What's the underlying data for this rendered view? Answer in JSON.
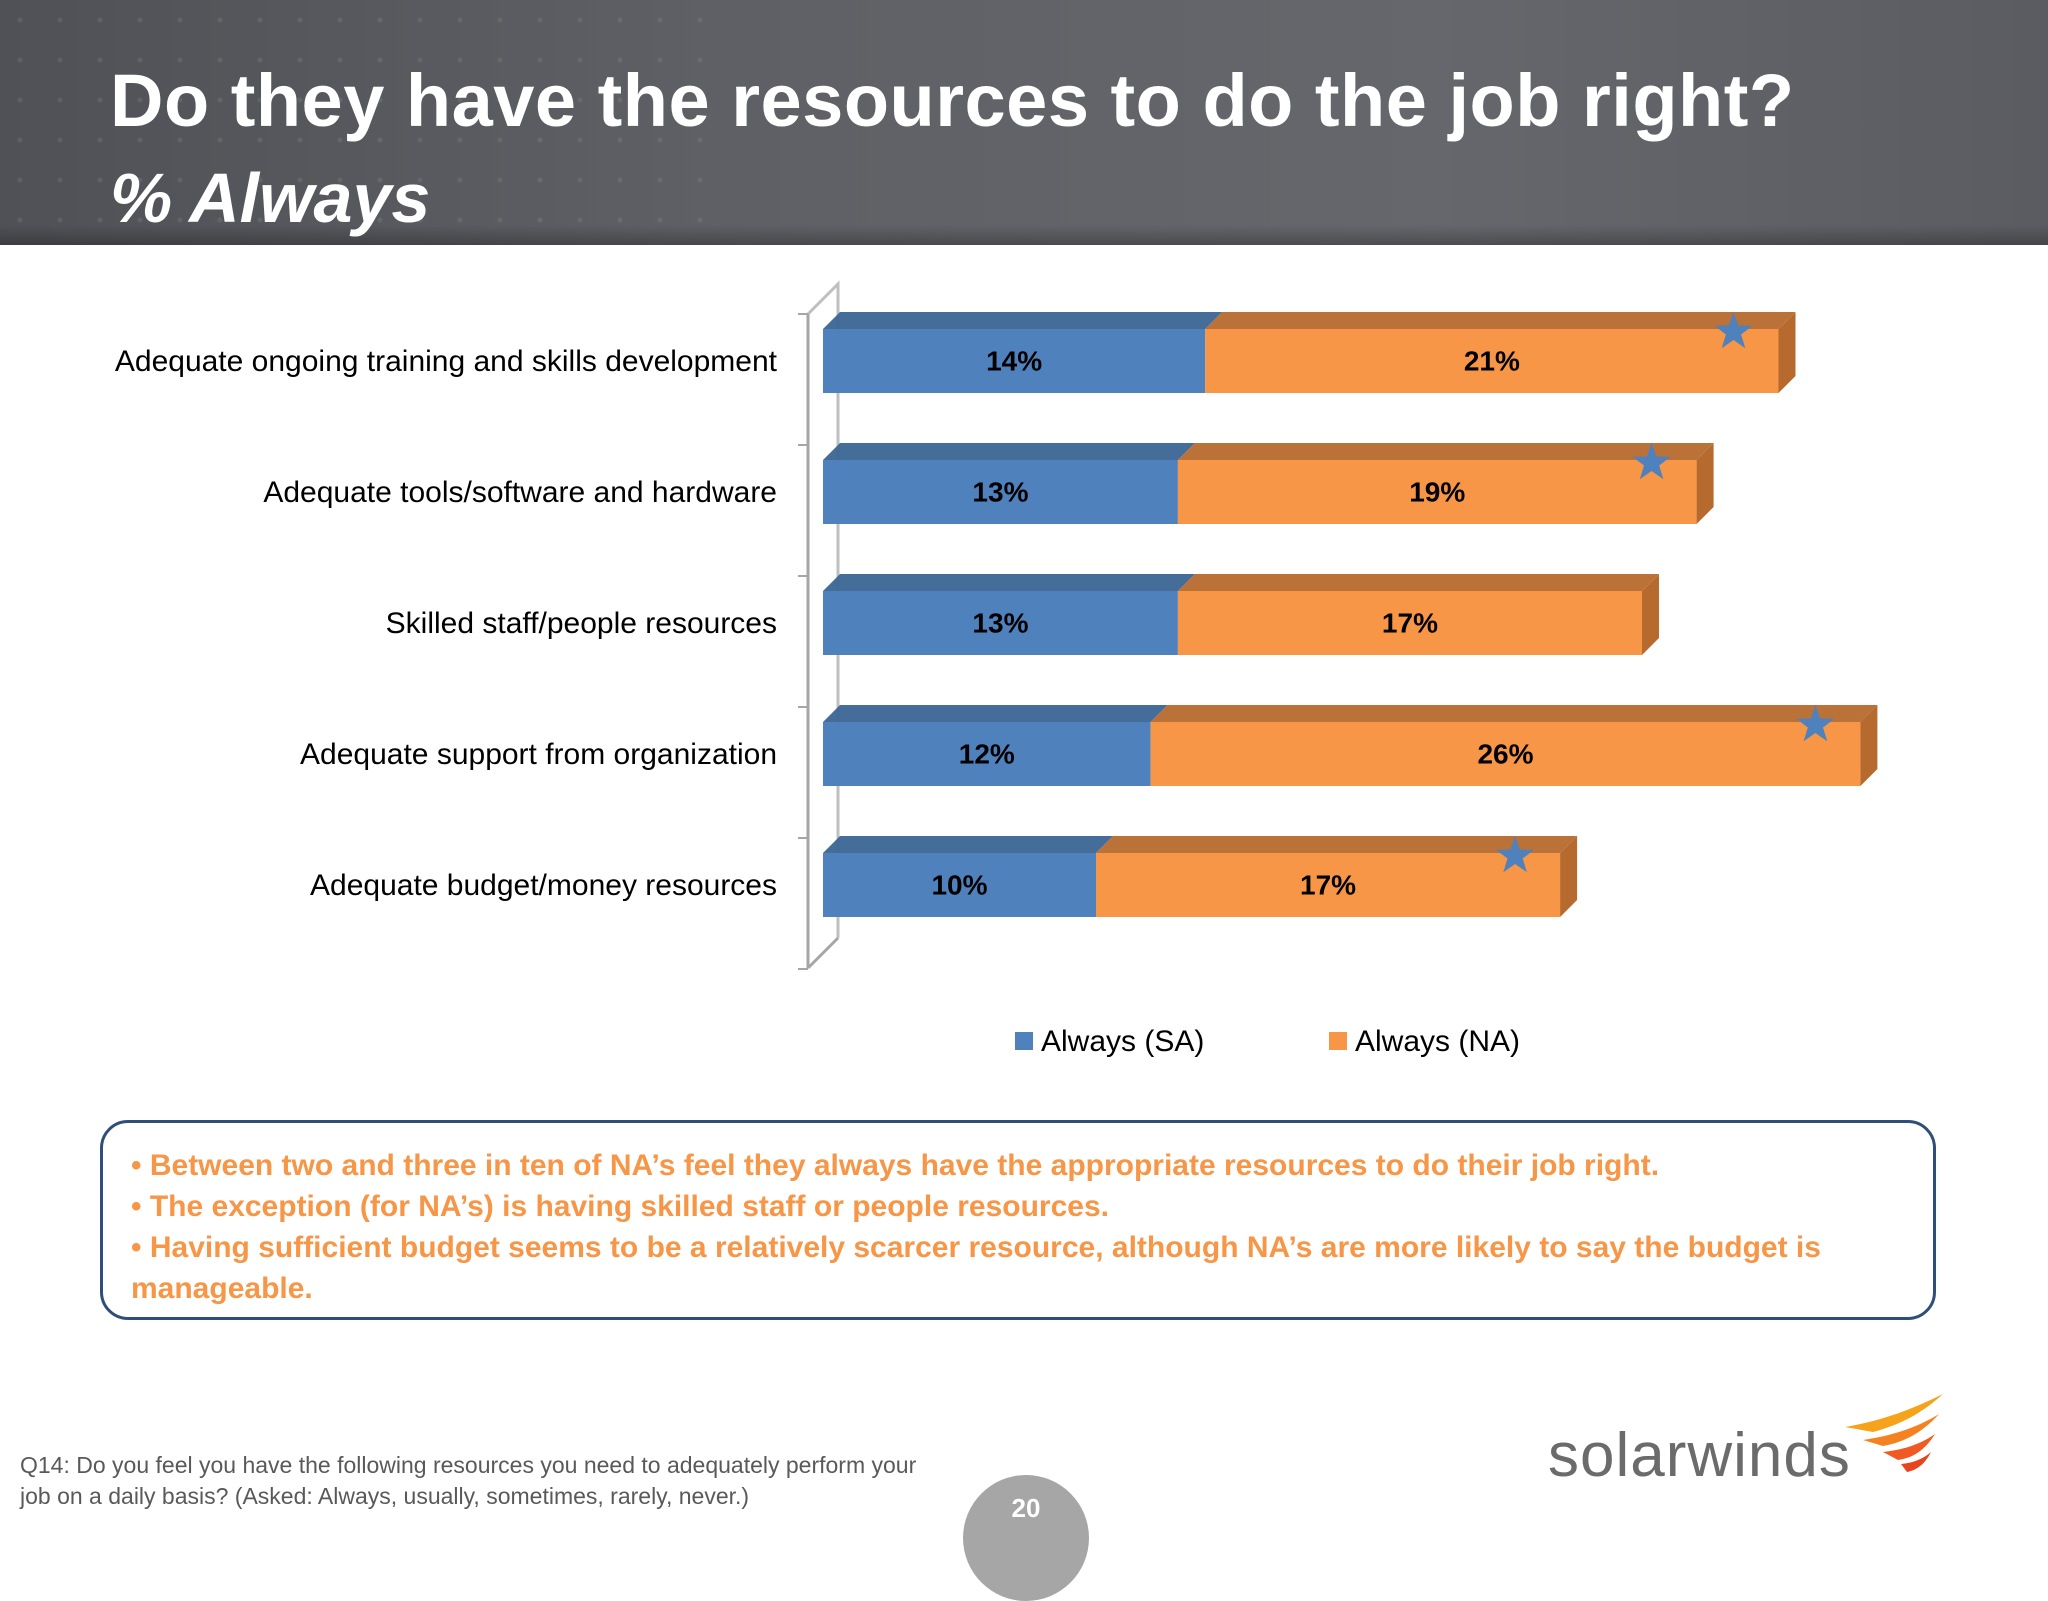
{
  "header": {
    "title": "Do they have the resources to do the job right?",
    "subtitle": "% Always"
  },
  "chart_data": {
    "type": "bar",
    "orientation": "horizontal",
    "stacked": true,
    "categories": [
      "Adequate ongoing training and skills development",
      "Adequate tools/software and hardware",
      "Skilled staff/people resources",
      "Adequate support from organization",
      "Adequate budget/money resources"
    ],
    "series": [
      {
        "name": "Always (SA)",
        "values": [
          14,
          13,
          13,
          12,
          10
        ],
        "color": "#4f81bd"
      },
      {
        "name": "Always (NA)",
        "values": [
          21,
          19,
          17,
          26,
          17
        ],
        "color": "#f79646"
      }
    ],
    "value_labels": [
      [
        "14%",
        "13%",
        "13%",
        "12%",
        "10%"
      ],
      [
        "21%",
        "19%",
        "17%",
        "26%",
        "17%"
      ]
    ],
    "star_marked": [
      true,
      true,
      false,
      true,
      true
    ],
    "legend_placement": "bottom",
    "grid": false,
    "xlim": [
      0,
      40
    ]
  },
  "summary": {
    "bullets": [
      "• Between two and three in ten of NA’s feel they always have the appropriate resources to do their job right.",
      "• The exception (for NA’s) is having skilled staff or people resources.",
      "• Having sufficient budget seems to be a relatively scarcer resource, although NA’s are more likely  to say the budget is manageable."
    ]
  },
  "footnote": "Q14: Do you feel you have the following resources you need to adequately perform your job on a daily basis? (Asked: Always, usually, sometimes, rarely, never.)",
  "page_number": "20",
  "logo": {
    "text": "solarwinds",
    "icon": "solarwinds-flame-icon"
  }
}
